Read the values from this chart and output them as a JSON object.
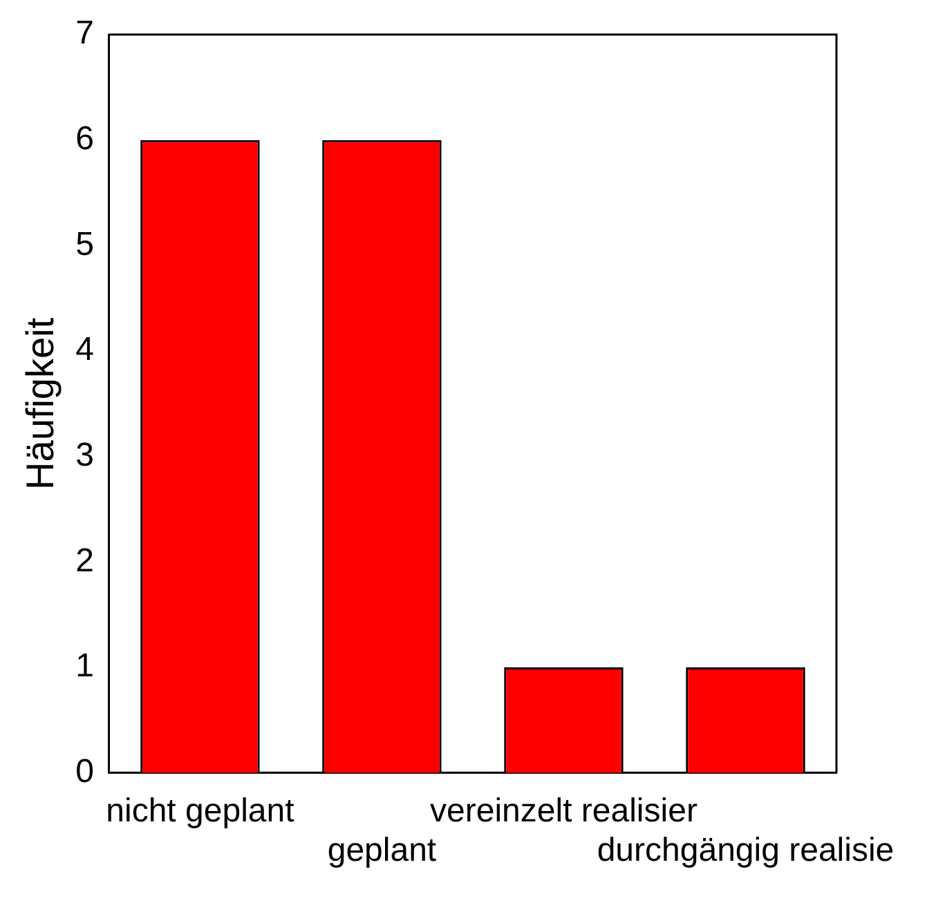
{
  "chart_data": {
    "type": "bar",
    "ylabel": "Häufigkeit",
    "categories": [
      "nicht geplant",
      "geplant",
      "vereinzelt realisier",
      "durchgängig realisie"
    ],
    "values": [
      6,
      6,
      1,
      1
    ],
    "color": "#ff0000",
    "ylim": [
      0,
      7
    ],
    "yticks": [
      0,
      1,
      2,
      3,
      4,
      5,
      6,
      7
    ],
    "grid": false,
    "legend": false
  }
}
